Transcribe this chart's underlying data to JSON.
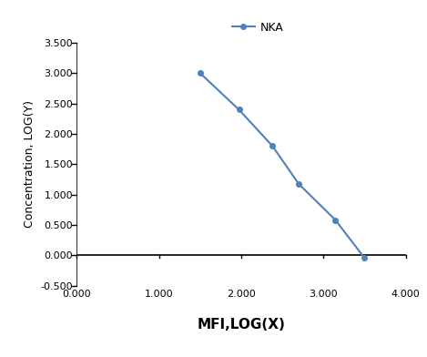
{
  "x_values": [
    1.5,
    1.973,
    2.38,
    2.699,
    3.146,
    3.5
  ],
  "y_values": [
    3.0,
    2.398,
    1.799,
    1.176,
    0.58,
    -0.046
  ],
  "line_color": "#4f81bd",
  "marker_color": "#4f81bd",
  "marker_style": "o",
  "marker_size": 4,
  "line_width": 1.5,
  "legend_label": "NKA",
  "xlabel": "MFI,LOG(X)",
  "ylabel": "Concentration, LOG(Y)",
  "xlim": [
    0.0,
    4.0
  ],
  "ylim": [
    -0.5,
    3.5
  ],
  "xticks": [
    0.0,
    1.0,
    2.0,
    3.0,
    4.0
  ],
  "yticks": [
    -0.5,
    0.0,
    0.5,
    1.0,
    1.5,
    2.0,
    2.5,
    3.0,
    3.5
  ],
  "xlabel_fontsize": 11,
  "ylabel_fontsize": 9,
  "tick_fontsize": 8,
  "legend_fontsize": 9,
  "background_color": "#ffffff",
  "spine_color": "#000000",
  "zero_cross_x": 0.0,
  "zero_cross_y": 0.0
}
